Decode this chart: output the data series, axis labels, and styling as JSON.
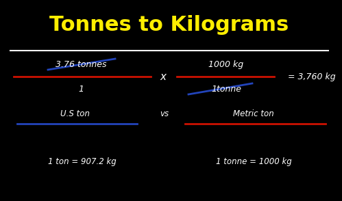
{
  "background_color": "#000000",
  "title": "Tonnes to Kilograms",
  "title_color": "#FFEE00",
  "title_fontsize": 22,
  "separator_color": "#FFFFFF",
  "text_color": "#FFFFFF",
  "red_color": "#CC1100",
  "blue_color": "#2244BB",
  "main_formula": {
    "numerator1": "3.76 tonnes",
    "denominator1": "1",
    "multiply": "x",
    "numerator2": "1000 kg",
    "denominator2": "1tonne",
    "result": "= 3,760 kg"
  },
  "comparison": {
    "left_label": "U.S ton",
    "vs": "vs",
    "right_label": "Metric ton"
  },
  "bottom": {
    "left": "1 ton = 907.2 kg",
    "right": "1 tonne = 1000 kg"
  },
  "font_size_main": 9,
  "font_size_comp": 8.5,
  "font_size_bottom": 8.5
}
